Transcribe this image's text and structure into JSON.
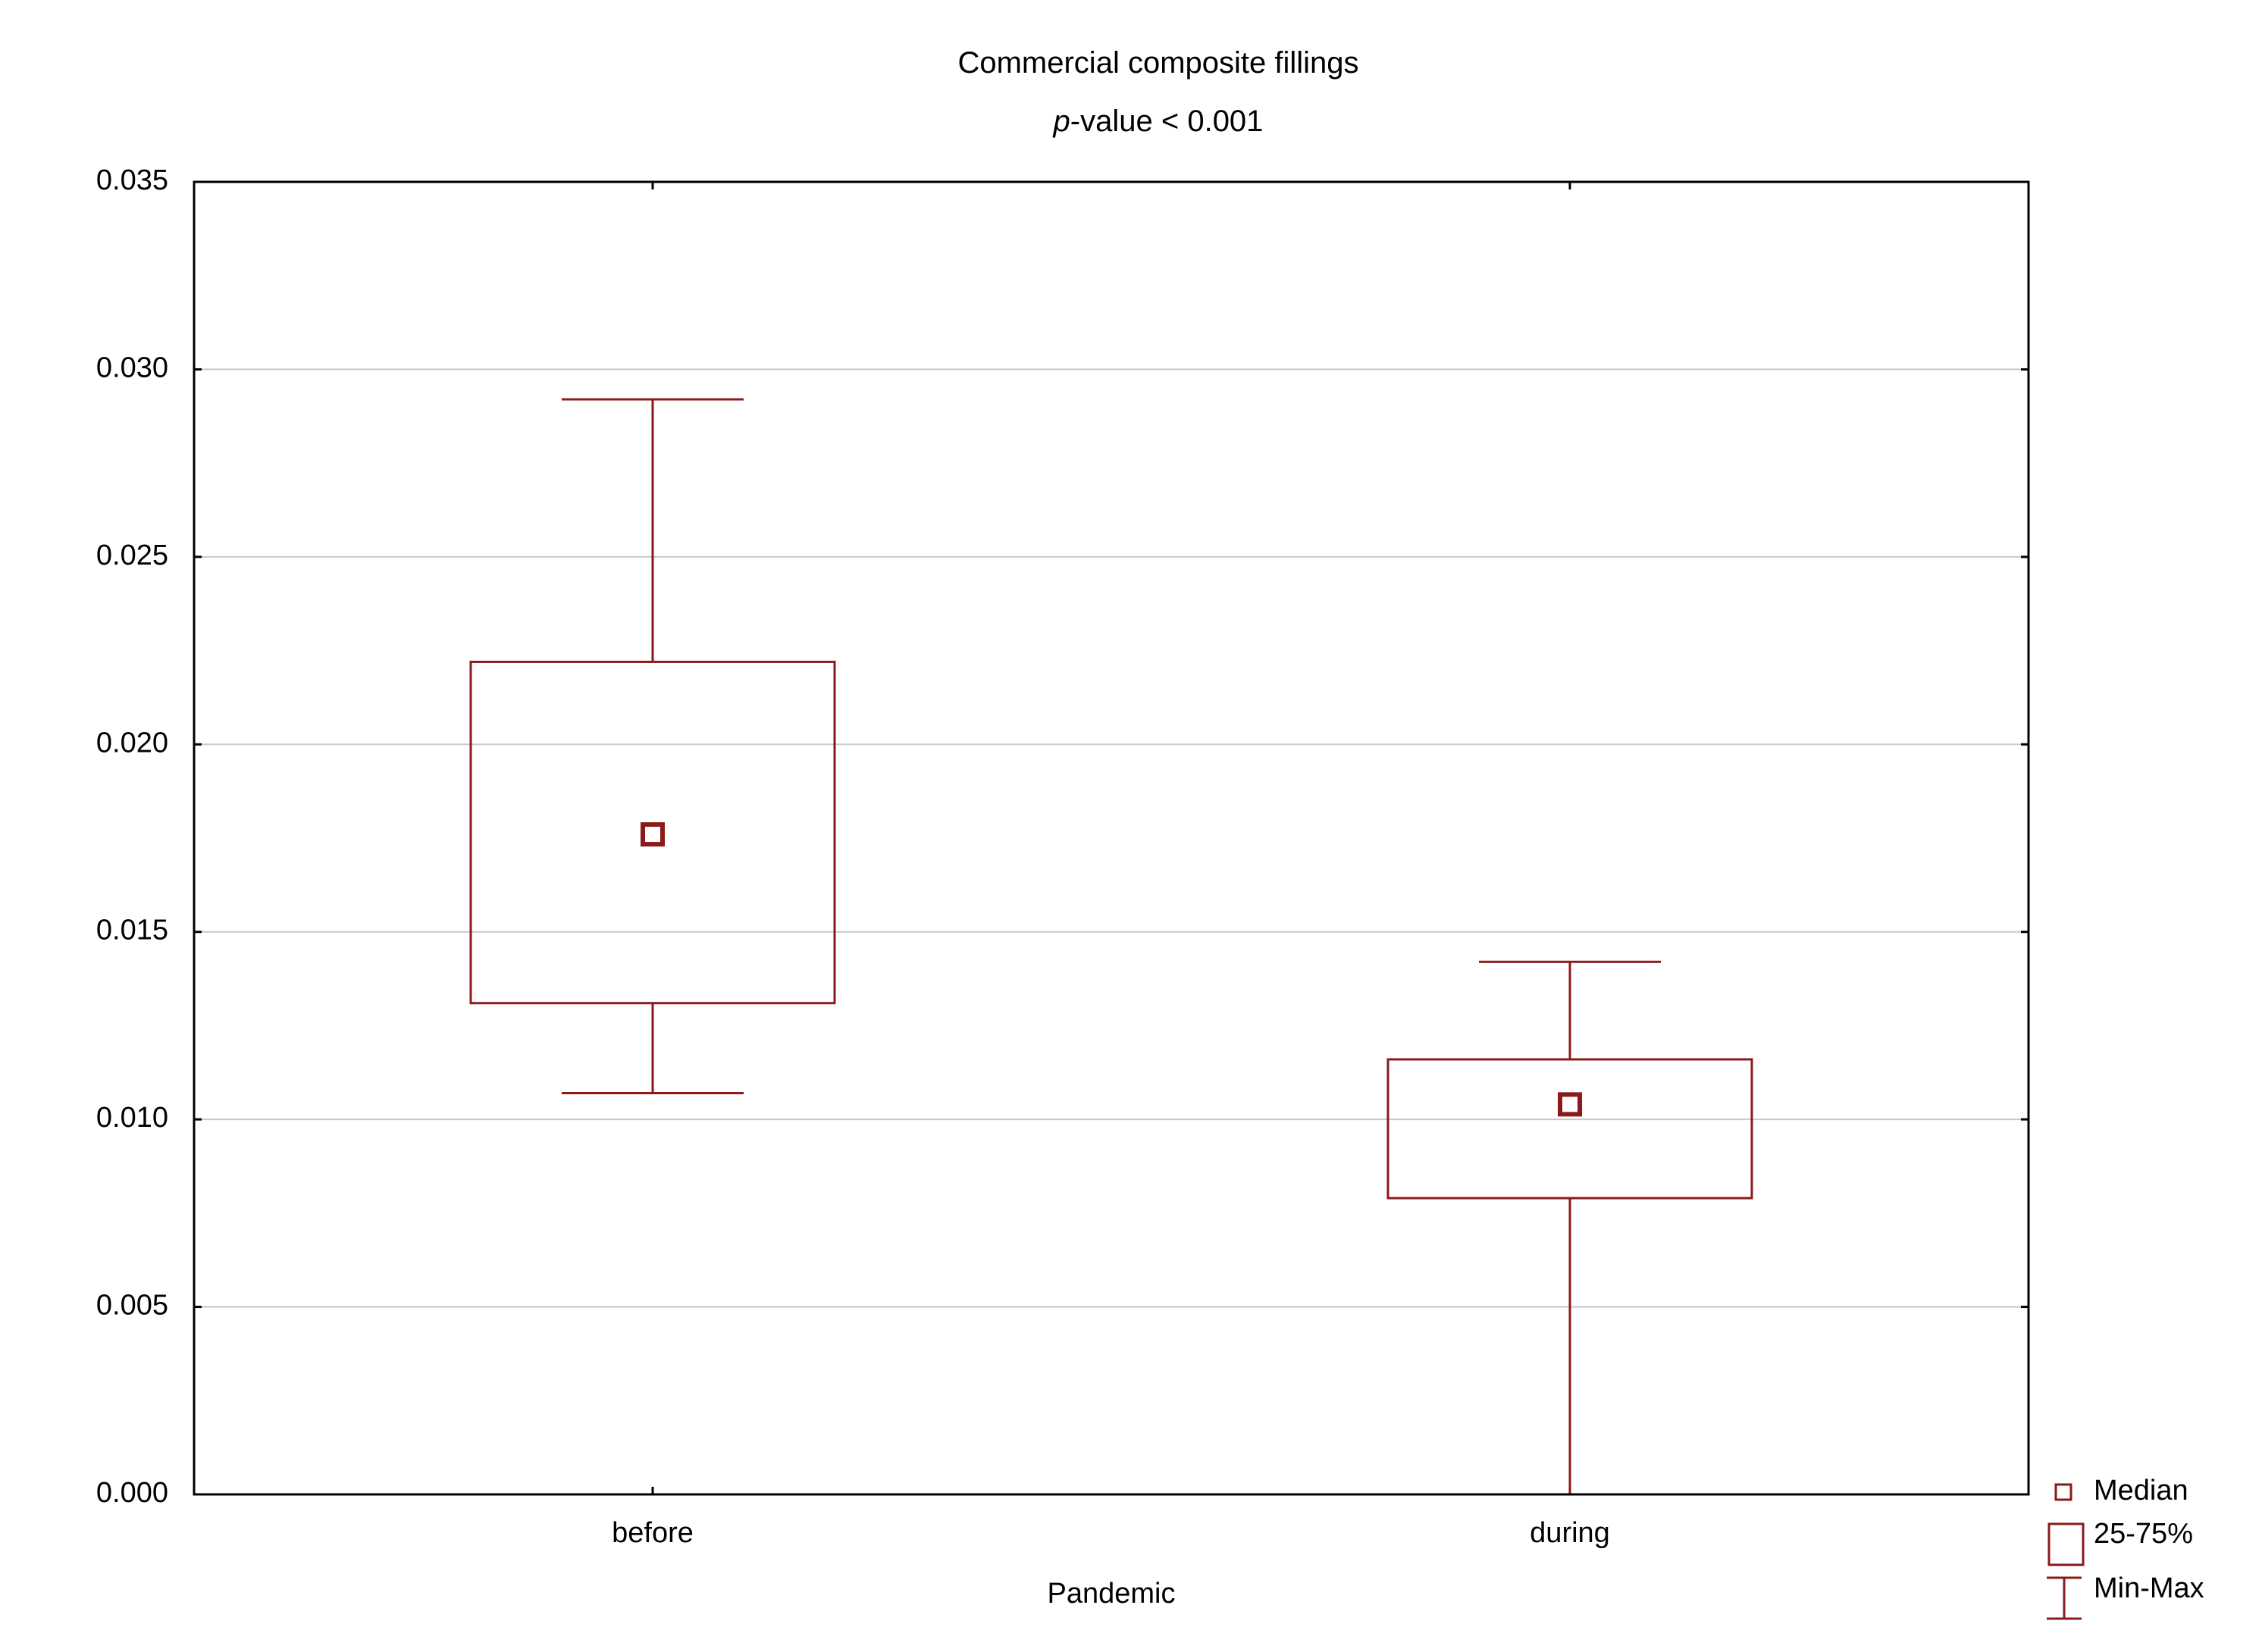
{
  "colors": {
    "box": "#8b1a1a",
    "frame": "#000000",
    "grid": "#c8c8c8",
    "background": "#ffffff"
  },
  "chart_data": {
    "type": "box",
    "title": "Commercial composite fillings",
    "subtitle_prefix": "p",
    "subtitle_rest": "-value < 0.001",
    "xlabel": "Pandemic",
    "ylabel": "",
    "ylim": [
      0,
      0.035
    ],
    "y_ticks": [
      "0.000",
      "0.005",
      "0.010",
      "0.015",
      "0.020",
      "0.025",
      "0.030",
      "0.035"
    ],
    "grid": true,
    "categories": [
      "before",
      "during"
    ],
    "boxes": [
      {
        "category": "before",
        "min": 0.0107,
        "q1": 0.0131,
        "median": 0.0176,
        "q3": 0.0222,
        "max": 0.0292
      },
      {
        "category": "during",
        "min": 0.0,
        "q1": 0.0079,
        "median": 0.0104,
        "q3": 0.0116,
        "max": 0.0142
      }
    ],
    "legend": {
      "position": "bottom-right",
      "items": [
        "Median",
        "25-75%",
        "Min-Max"
      ]
    }
  }
}
